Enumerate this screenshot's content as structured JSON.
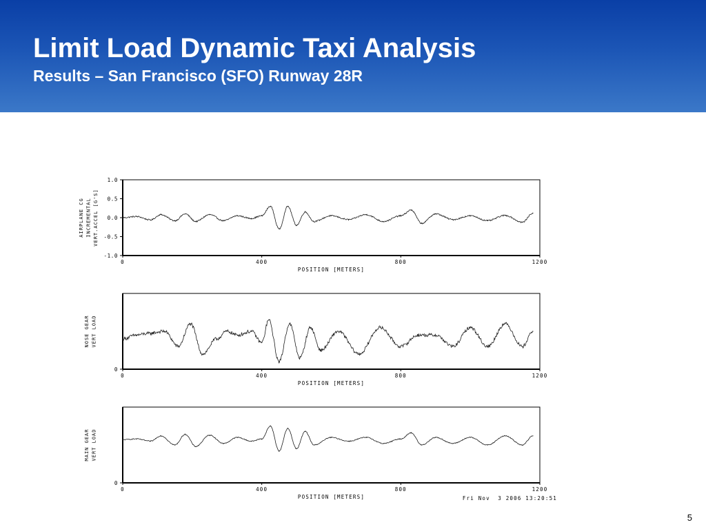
{
  "slide": {
    "title": "Limit Load Dynamic Taxi Analysis",
    "subtitle": "Results – San Francisco (SFO) Runway 28R",
    "page_number": "5",
    "timestamp": "Fri Nov  3 2006 13:20:51",
    "header_color_top": "#0a3fa6",
    "header_color_bottom": "#3b78c8"
  },
  "chart_data": [
    {
      "type": "line",
      "ylabel": [
        "AIRPLANE CG",
        "INCREMENTAL",
        "VERT.ACCEL [G'S]"
      ],
      "xlabel": "POSITION [METERS]",
      "xlim": [
        0,
        1200
      ],
      "ylim": [
        -1.0,
        1.0
      ],
      "xticks": [
        "0",
        "400",
        "800",
        "1200"
      ],
      "yticks": [
        "1.0",
        "0.5",
        "0.0",
        "-0.5",
        "-1.0"
      ],
      "baseline": 0.0,
      "x": [
        0,
        40,
        80,
        110,
        150,
        180,
        210,
        250,
        290,
        330,
        370,
        400,
        425,
        450,
        475,
        500,
        525,
        550,
        600,
        650,
        700,
        750,
        800,
        830,
        860,
        900,
        950,
        1000,
        1050,
        1100,
        1150,
        1180
      ],
      "values": [
        0.0,
        0.03,
        -0.06,
        0.08,
        -0.08,
        0.1,
        -0.1,
        0.08,
        -0.08,
        0.05,
        -0.02,
        0.05,
        0.3,
        -0.3,
        0.3,
        -0.2,
        0.15,
        -0.1,
        0.05,
        -0.05,
        0.08,
        -0.1,
        0.05,
        0.2,
        -0.15,
        0.1,
        -0.05,
        0.05,
        -0.08,
        0.06,
        -0.12,
        0.12
      ]
    },
    {
      "type": "line",
      "ylabel": [
        "NOSE GEAR",
        "VERT LOAD"
      ],
      "xlabel": "POSITION [METERS]",
      "xlim": [
        0,
        1200
      ],
      "ylim": [
        0,
        1
      ],
      "xticks": [
        "0",
        "400",
        "800",
        "1200"
      ],
      "yticks": [
        "0"
      ],
      "baseline": 0.46,
      "x": [
        0,
        40,
        70,
        120,
        160,
        195,
        230,
        270,
        300,
        330,
        370,
        400,
        420,
        450,
        480,
        510,
        540,
        570,
        620,
        680,
        740,
        800,
        850,
        900,
        950,
        1000,
        1050,
        1100,
        1150,
        1180
      ],
      "values": [
        0.4,
        0.45,
        0.47,
        0.5,
        0.3,
        0.6,
        0.2,
        0.4,
        0.5,
        0.45,
        0.5,
        0.35,
        0.65,
        0.1,
        0.6,
        0.15,
        0.55,
        0.25,
        0.5,
        0.2,
        0.55,
        0.3,
        0.45,
        0.45,
        0.3,
        0.55,
        0.3,
        0.6,
        0.3,
        0.5
      ]
    },
    {
      "type": "line",
      "ylabel": [
        "MAIN GEAR",
        "VERT LOAD"
      ],
      "xlabel": "POSITION [METERS]",
      "xlim": [
        0,
        1200
      ],
      "ylim": [
        0,
        1
      ],
      "xticks": [
        "0",
        "400",
        "800",
        "1200"
      ],
      "yticks": [
        "0"
      ],
      "baseline": 0.57,
      "x": [
        0,
        40,
        80,
        110,
        150,
        180,
        210,
        250,
        290,
        330,
        370,
        400,
        425,
        450,
        475,
        500,
        525,
        550,
        600,
        650,
        700,
        750,
        800,
        830,
        860,
        900,
        950,
        1000,
        1050,
        1100,
        1150,
        1180
      ],
      "values": [
        0.57,
        0.58,
        0.55,
        0.62,
        0.5,
        0.64,
        0.48,
        0.63,
        0.52,
        0.6,
        0.55,
        0.58,
        0.75,
        0.42,
        0.72,
        0.45,
        0.68,
        0.5,
        0.6,
        0.55,
        0.6,
        0.52,
        0.58,
        0.66,
        0.5,
        0.6,
        0.52,
        0.6,
        0.5,
        0.62,
        0.5,
        0.62
      ]
    }
  ]
}
